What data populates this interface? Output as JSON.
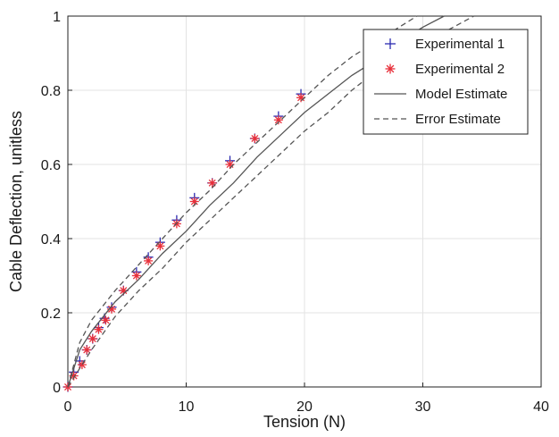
{
  "chart_data": {
    "type": "scatter",
    "title": "",
    "xlabel": "Tension (N)",
    "ylabel": "Cable Deflection, unitless",
    "xlim": [
      0,
      40
    ],
    "ylim": [
      0,
      1
    ],
    "xticks": [
      0,
      10,
      20,
      30,
      40
    ],
    "yticks": [
      0,
      0.2,
      0.4,
      0.6,
      0.8,
      1
    ],
    "xtick_labels": [
      "0",
      "10",
      "20",
      "30",
      "40"
    ],
    "ytick_labels": [
      "0",
      "0.2",
      "0.4",
      "0.6",
      "0.8",
      "1"
    ],
    "grid": true,
    "legend_position": "top-right",
    "series": [
      {
        "name": "Experimental 1",
        "kind": "marker-plus",
        "color": "#2b2bb0",
        "x": [
          0,
          0.5,
          1.0,
          1.6,
          2.1,
          2.6,
          3.1,
          3.7,
          4.7,
          5.8,
          6.8,
          7.8,
          9.2,
          10.7,
          12.2,
          13.7,
          15.8,
          17.8,
          19.7
        ],
        "y": [
          0,
          0.04,
          0.07,
          0.1,
          0.13,
          0.16,
          0.185,
          0.215,
          0.26,
          0.31,
          0.35,
          0.39,
          0.45,
          0.51,
          0.55,
          0.61,
          0.67,
          0.73,
          0.79
        ]
      },
      {
        "name": "Experimental 2",
        "kind": "marker-asterisk",
        "color": "#e8303a",
        "x": [
          0,
          0.5,
          1.2,
          1.6,
          2.1,
          2.6,
          3.2,
          3.7,
          4.7,
          5.8,
          6.8,
          7.8,
          9.2,
          10.7,
          12.2,
          13.7,
          15.8,
          17.8,
          19.7
        ],
        "y": [
          0,
          0.03,
          0.06,
          0.1,
          0.13,
          0.155,
          0.18,
          0.21,
          0.26,
          0.3,
          0.34,
          0.38,
          0.44,
          0.5,
          0.55,
          0.6,
          0.67,
          0.72,
          0.78
        ]
      },
      {
        "name": "Model Estimate",
        "kind": "line-solid",
        "color": "#555555",
        "x": [
          0,
          1,
          2,
          4,
          6,
          8,
          10,
          12,
          14,
          16,
          18,
          20,
          22,
          24,
          26,
          28,
          30,
          31.8
        ],
        "y": [
          0,
          0.1,
          0.15,
          0.23,
          0.29,
          0.36,
          0.42,
          0.49,
          0.55,
          0.62,
          0.68,
          0.74,
          0.79,
          0.84,
          0.88,
          0.93,
          0.97,
          1.0
        ]
      },
      {
        "name": "Error Estimate",
        "kind": "line-dashed",
        "color": "#555555",
        "x": [
          0,
          1,
          2,
          4,
          6,
          8,
          10,
          12,
          14,
          16,
          18,
          20,
          22,
          24,
          26,
          28,
          29.5
        ],
        "y": [
          0,
          0.12,
          0.18,
          0.26,
          0.33,
          0.4,
          0.47,
          0.53,
          0.6,
          0.66,
          0.72,
          0.78,
          0.84,
          0.89,
          0.93,
          0.97,
          1.0
        ]
      },
      {
        "kind": "line-dashed",
        "color": "#555555",
        "x": [
          0,
          2,
          4,
          6,
          8,
          10,
          12,
          14,
          16,
          18,
          20,
          22,
          24,
          26,
          28,
          30,
          32,
          34.3
        ],
        "y": [
          0,
          0.1,
          0.19,
          0.26,
          0.32,
          0.39,
          0.45,
          0.51,
          0.57,
          0.63,
          0.69,
          0.74,
          0.8,
          0.85,
          0.89,
          0.93,
          0.96,
          1.0
        ]
      }
    ]
  }
}
